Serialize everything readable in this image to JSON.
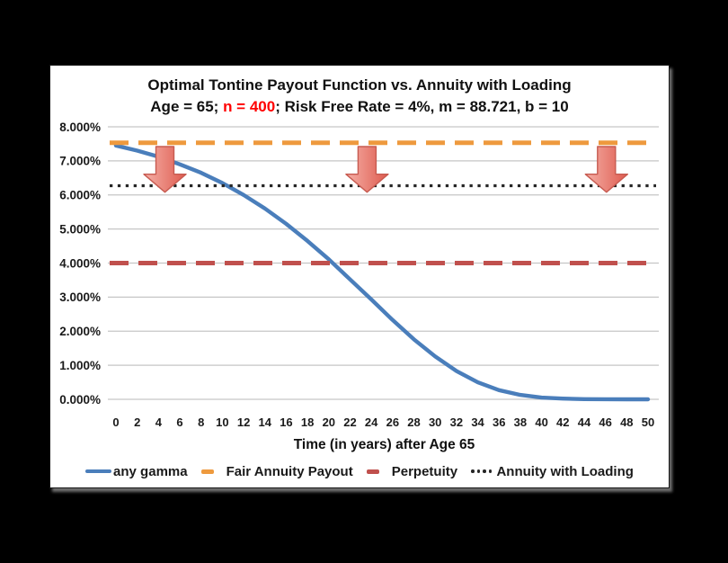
{
  "window": {
    "background_color": "#000000",
    "panel_color": "#FFFFFF"
  },
  "chart": {
    "title": "Optimal Tontine Payout Function vs. Annuity with Loading",
    "subtitle_prefix": "Age = 65; ",
    "subtitle_highlight": "n = 400",
    "subtitle_suffix": "; Risk Free Rate = 4%, m = 88.721, b = 10",
    "highlight_color": "#FF0000",
    "text_color": "#111111"
  },
  "chart_data": {
    "type": "line",
    "title": "Optimal Tontine Payout Function vs. Annuity with Loading",
    "subtitle": "Age = 65; n = 400; Risk Free Rate = 4%, m = 88.721, b = 10",
    "xlabel": "Time (in years) after Age 65",
    "ylabel": "",
    "xlim": [
      0,
      50
    ],
    "ylim": [
      0,
      8
    ],
    "grid": true,
    "gridline_color": "#C6C6C6",
    "legend_position": "bottom",
    "x_ticks": [
      0,
      2,
      4,
      6,
      8,
      10,
      12,
      14,
      16,
      18,
      20,
      22,
      24,
      26,
      28,
      30,
      32,
      34,
      36,
      38,
      40,
      42,
      44,
      46,
      48,
      50
    ],
    "y_ticks": [
      {
        "value": 0,
        "label": "0.000%"
      },
      {
        "value": 1,
        "label": "1.000%"
      },
      {
        "value": 2,
        "label": "2.000%"
      },
      {
        "value": 3,
        "label": "3.000%"
      },
      {
        "value": 4,
        "label": "4.000%"
      },
      {
        "value": 5,
        "label": "5.000%"
      },
      {
        "value": 6,
        "label": "6.000%"
      },
      {
        "value": 7,
        "label": "7.000%"
      },
      {
        "value": 8,
        "label": "8.000%"
      }
    ],
    "x": [
      0,
      2,
      4,
      6,
      8,
      10,
      12,
      14,
      16,
      18,
      20,
      22,
      24,
      26,
      28,
      30,
      32,
      34,
      36,
      38,
      40,
      42,
      44,
      46,
      48,
      50
    ],
    "series": [
      {
        "name": "any gamma",
        "kind": "curve",
        "style": "solid",
        "color": "#4A7EBB",
        "values": [
          7.45,
          7.3,
          7.12,
          6.9,
          6.65,
          6.35,
          6.0,
          5.6,
          5.15,
          4.65,
          4.11,
          3.52,
          2.93,
          2.33,
          1.76,
          1.26,
          0.83,
          0.5,
          0.27,
          0.13,
          0.05,
          0.02,
          0.005,
          0.002,
          0.001,
          0.001
        ]
      },
      {
        "name": "Fair Annuity Payout",
        "kind": "hline",
        "style": "dashed",
        "color": "#EE9A3E",
        "value": 7.53
      },
      {
        "name": "Perpetuity",
        "kind": "hline",
        "style": "dashed",
        "color": "#C0504D",
        "value": 4.0
      },
      {
        "name": "Annuity with Loading",
        "kind": "hline",
        "style": "dotted",
        "color": "#262626",
        "value": 6.27
      }
    ],
    "annotations": {
      "down_arrows": {
        "description": "three red arrows from Fair Annuity Payout line down to Annuity with Loading line",
        "positions_x": [
          4.6,
          23.6,
          46.1
        ],
        "from_value": 7.42,
        "to_value": 6.08,
        "fill_light": "#F5AFA6",
        "fill_dark": "#DE5B4F",
        "border_color": "#C75B51"
      }
    }
  }
}
